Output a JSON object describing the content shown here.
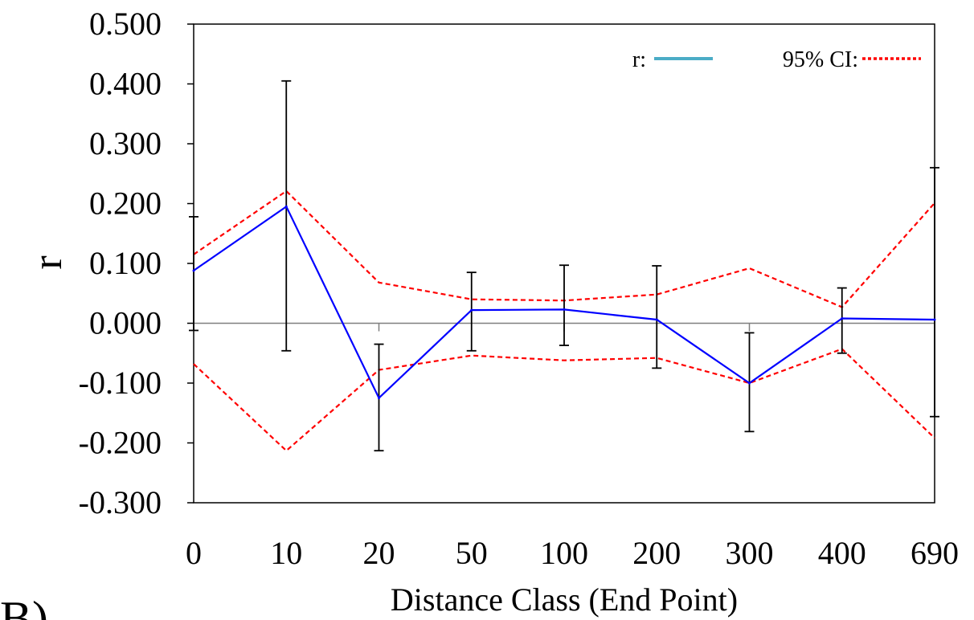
{
  "chart_data": {
    "type": "line",
    "xlabel": "Distance Class (End Point)",
    "ylabel": "r",
    "categories": [
      "0",
      "10",
      "20",
      "50",
      "100",
      "200",
      "300",
      "400",
      "690"
    ],
    "y_ticks": [
      "0.500",
      "0.400",
      "0.300",
      "0.200",
      "0.100",
      "0.000",
      "-0.100",
      "-0.200",
      "-0.300"
    ],
    "ylim": [
      -0.3,
      0.5
    ],
    "grid": false,
    "legend_position": "top-right",
    "panel_label": "B)",
    "series": [
      {
        "name": "r:",
        "style": "solid",
        "color": "#0000ff",
        "legend_color": "#4bacc6",
        "values": [
          0.088,
          0.195,
          -0.125,
          0.022,
          0.023,
          0.006,
          -0.1,
          0.008,
          0.006
        ],
        "error_upper": [
          0.178,
          0.405,
          -0.035,
          0.085,
          0.097,
          0.096,
          -0.016,
          0.059,
          0.26
        ],
        "error_lower": [
          -0.012,
          -0.046,
          -0.213,
          -0.046,
          -0.037,
          -0.075,
          -0.181,
          -0.05,
          -0.156
        ]
      },
      {
        "name": "95% CI:",
        "style": "dashed",
        "color": "#ff0000",
        "upper": [
          0.115,
          0.221,
          0.068,
          0.04,
          0.038,
          0.048,
          0.092,
          0.027,
          0.201
        ],
        "lower": [
          -0.068,
          -0.213,
          -0.078,
          -0.054,
          -0.062,
          -0.058,
          -0.1,
          -0.043,
          -0.192
        ]
      }
    ]
  }
}
